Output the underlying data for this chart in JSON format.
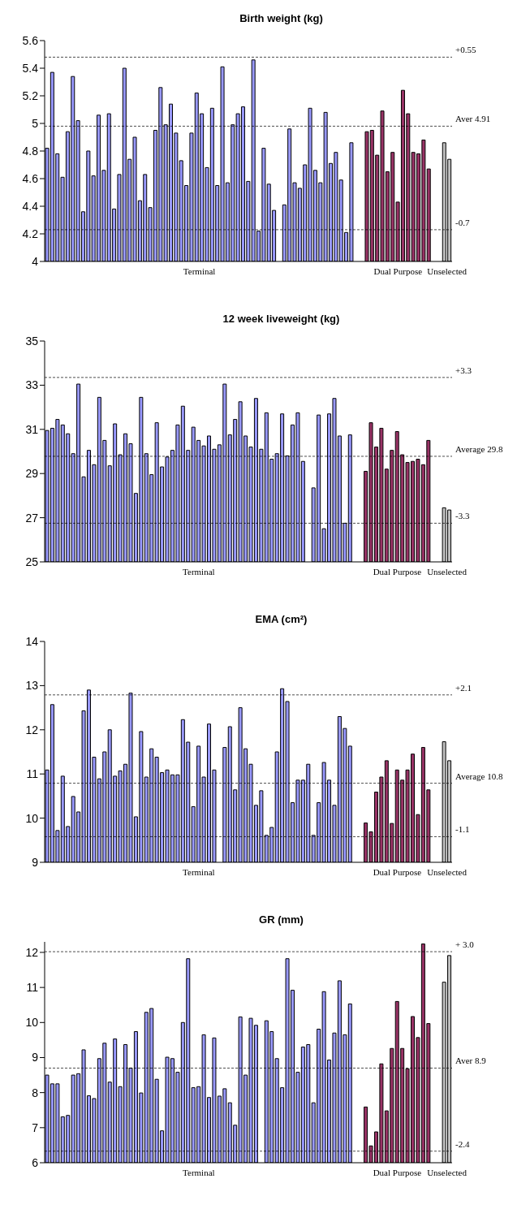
{
  "chart_data": [
    {
      "type": "bar",
      "title": "Birth weight (kg)",
      "ylim": [
        4,
        5.6
      ],
      "yticks": [
        4,
        4.2,
        4.4,
        4.6,
        4.8,
        5,
        5.2,
        5.4,
        5.6
      ],
      "categories": [
        null,
        null,
        null,
        null,
        null,
        null,
        null,
        null,
        null,
        null,
        null,
        null,
        null,
        null,
        null,
        null,
        null,
        null,
        null,
        null,
        null,
        null,
        null,
        null,
        null,
        null,
        null,
        null,
        null,
        null,
        null,
        null,
        null,
        null,
        null,
        null,
        null,
        null,
        null,
        null,
        null,
        null,
        null,
        null,
        null,
        null,
        null,
        null,
        null,
        null,
        null,
        null,
        null,
        null,
        null,
        null,
        null,
        null,
        null,
        null,
        null,
        null,
        null,
        null,
        null,
        null,
        null,
        null,
        null,
        null,
        null,
        null,
        null,
        null,
        null,
        null,
        null,
        null,
        null
      ],
      "values": [
        4.82,
        5.37,
        4.78,
        4.61,
        4.94,
        5.34,
        5.02,
        4.36,
        4.8,
        4.62,
        5.06,
        4.66,
        5.07,
        4.38,
        4.63,
        5.4,
        4.74,
        4.9,
        4.44,
        4.63,
        4.39,
        4.95,
        5.26,
        4.99,
        5.14,
        4.93,
        4.73,
        4.55,
        4.93,
        5.22,
        5.07,
        4.68,
        5.11,
        4.55,
        5.41,
        4.57,
        4.99,
        5.07,
        5.12,
        4.58,
        5.46,
        4.22,
        4.82,
        4.56,
        4.37,
        null,
        4.41,
        4.96,
        4.57,
        4.53,
        4.7,
        5.11,
        4.66,
        4.57,
        5.08,
        4.71,
        4.79,
        4.59,
        4.21,
        4.86,
        null,
        null,
        4.94,
        4.95,
        4.77,
        5.09,
        4.65,
        4.79,
        4.43,
        5.24,
        5.07,
        4.79,
        4.78,
        4.88,
        4.67,
        null,
        null,
        4.86,
        4.74
      ],
      "colors": [
        "#9999ff",
        "#9999ff",
        "#9999ff",
        "#9999ff",
        "#9999ff",
        "#9999ff",
        "#9999ff",
        "#9999ff",
        "#9999ff",
        "#9999ff",
        "#9999ff",
        "#9999ff",
        "#9999ff",
        "#9999ff",
        "#9999ff",
        "#9999ff",
        "#9999ff",
        "#9999ff",
        "#9999ff",
        "#9999ff",
        "#9999ff",
        "#9999ff",
        "#9999ff",
        "#9999ff",
        "#9999ff",
        "#9999ff",
        "#9999ff",
        "#9999ff",
        "#9999ff",
        "#9999ff",
        "#9999ff",
        "#9999ff",
        "#9999ff",
        "#9999ff",
        "#9999ff",
        "#9999ff",
        "#9999ff",
        "#9999ff",
        "#9999ff",
        "#9999ff",
        "#9999ff",
        "#9999ff",
        "#9999ff",
        "#9999ff",
        "#9999ff",
        null,
        "#9999ff",
        "#9999ff",
        "#9999ff",
        "#9999ff",
        "#9999ff",
        "#9999ff",
        "#9999ff",
        "#9999ff",
        "#9999ff",
        "#9999ff",
        "#9999ff",
        "#9999ff",
        "#9999ff",
        "#9999ff",
        null,
        null,
        "#993366",
        "#993366",
        "#993366",
        "#993366",
        "#993366",
        "#993366",
        "#993366",
        "#993366",
        "#993366",
        "#993366",
        "#993366",
        "#993366",
        "#993366",
        null,
        null,
        "#c0c0c0",
        "#c0c0c0"
      ],
      "ref_lines": [
        {
          "axis": "y",
          "value": 5.48,
          "line_style": "dashed"
        },
        {
          "axis": "y",
          "value": 4.98,
          "line_style": "dashed"
        },
        {
          "axis": "y",
          "value": 4.23,
          "line_style": "dashed"
        }
      ],
      "annotations": [
        "+0.55",
        "Aver 4.91",
        "-0.7",
        "Terminal",
        "Dual Purpose",
        "Unselected"
      ]
    },
    {
      "type": "bar",
      "title": "12 week liveweight (kg)",
      "ylim": [
        25,
        35
      ],
      "yticks": [
        25,
        27,
        29,
        31,
        33,
        35
      ],
      "categories": [
        null,
        null,
        null,
        null,
        null,
        null,
        null,
        null,
        null,
        null,
        null,
        null,
        null,
        null,
        null,
        null,
        null,
        null,
        null,
        null,
        null,
        null,
        null,
        null,
        null,
        null,
        null,
        null,
        null,
        null,
        null,
        null,
        null,
        null,
        null,
        null,
        null,
        null,
        null,
        null,
        null,
        null,
        null,
        null,
        null,
        null,
        null,
        null,
        null,
        null,
        null,
        null,
        null,
        null,
        null,
        null,
        null,
        null,
        null,
        null,
        null,
        null,
        null,
        null,
        null,
        null,
        null,
        null,
        null,
        null,
        null,
        null,
        null,
        null,
        null,
        null,
        null,
        null
      ],
      "values": [
        30.95,
        31.05,
        31.45,
        31.2,
        30.8,
        29.9,
        33.05,
        28.85,
        30.05,
        29.4,
        32.45,
        30.5,
        29.35,
        31.25,
        29.85,
        30.8,
        30.35,
        28.1,
        32.45,
        29.9,
        28.95,
        31.3,
        29.3,
        29.75,
        30.05,
        31.2,
        32.05,
        30.05,
        31.1,
        30.5,
        30.25,
        30.7,
        30.1,
        30.3,
        33.05,
        30.75,
        31.45,
        32.25,
        30.7,
        30.2,
        32.4,
        30.1,
        31.75,
        29.65,
        29.9,
        31.7,
        29.8,
        31.2,
        31.75,
        29.55,
        null,
        28.35,
        31.65,
        26.5,
        31.7,
        32.4,
        30.7,
        26.75,
        30.75,
        null,
        null,
        29.1,
        31.3,
        30.2,
        31.05,
        29.2,
        30.05,
        30.9,
        29.85,
        29.5,
        29.55,
        29.65,
        29.4,
        30.5,
        null,
        null,
        27.45,
        27.35
      ],
      "colors": [
        "#9999ff",
        "#9999ff",
        "#9999ff",
        "#9999ff",
        "#9999ff",
        "#9999ff",
        "#9999ff",
        "#9999ff",
        "#9999ff",
        "#9999ff",
        "#9999ff",
        "#9999ff",
        "#9999ff",
        "#9999ff",
        "#9999ff",
        "#9999ff",
        "#9999ff",
        "#9999ff",
        "#9999ff",
        "#9999ff",
        "#9999ff",
        "#9999ff",
        "#9999ff",
        "#9999ff",
        "#9999ff",
        "#9999ff",
        "#9999ff",
        "#9999ff",
        "#9999ff",
        "#9999ff",
        "#9999ff",
        "#9999ff",
        "#9999ff",
        "#9999ff",
        "#9999ff",
        "#9999ff",
        "#9999ff",
        "#9999ff",
        "#9999ff",
        "#9999ff",
        "#9999ff",
        "#9999ff",
        "#9999ff",
        "#9999ff",
        "#9999ff",
        "#9999ff",
        "#9999ff",
        "#9999ff",
        "#9999ff",
        "#9999ff",
        null,
        "#9999ff",
        "#9999ff",
        "#9999ff",
        "#9999ff",
        "#9999ff",
        "#9999ff",
        "#9999ff",
        "#9999ff",
        null,
        null,
        "#993366",
        "#993366",
        "#993366",
        "#993366",
        "#993366",
        "#993366",
        "#993366",
        "#993366",
        "#993366",
        "#993366",
        "#993366",
        "#993366",
        "#993366",
        null,
        null,
        "#c0c0c0",
        "#c0c0c0"
      ],
      "ref_lines": [
        {
          "axis": "y",
          "value": 33.35,
          "line_style": "dashed"
        },
        {
          "axis": "y",
          "value": 29.78,
          "line_style": "dashed"
        },
        {
          "axis": "y",
          "value": 26.75,
          "line_style": "dashed"
        }
      ],
      "annotations": [
        "+3.3",
        "Average 29.8",
        "-3.3",
        "Terminal",
        "Dual Purpose",
        "Unselected"
      ]
    },
    {
      "type": "bar",
      "title": "EMA (cm²)",
      "ylim": [
        9,
        14
      ],
      "yticks": [
        9,
        10,
        11,
        12,
        13,
        14
      ],
      "categories": [
        null,
        null,
        null,
        null,
        null,
        null,
        null,
        null,
        null,
        null,
        null,
        null,
        null,
        null,
        null,
        null,
        null,
        null,
        null,
        null,
        null,
        null,
        null,
        null,
        null,
        null,
        null,
        null,
        null,
        null,
        null,
        null,
        null,
        null,
        null,
        null,
        null,
        null,
        null,
        null,
        null,
        null,
        null,
        null,
        null,
        null,
        null,
        null,
        null,
        null,
        null,
        null,
        null,
        null,
        null,
        null,
        null,
        null,
        null,
        null,
        null,
        null,
        null,
        null,
        null,
        null,
        null,
        null,
        null,
        null,
        null,
        null,
        null,
        null,
        null,
        null,
        null,
        null
      ],
      "values": [
        11.09,
        12.57,
        9.72,
        10.95,
        9.81,
        10.49,
        10.14,
        12.43,
        12.9,
        11.38,
        10.89,
        11.5,
        12.0,
        10.95,
        11.07,
        11.22,
        12.83,
        10.03,
        11.96,
        10.93,
        11.57,
        11.38,
        11.03,
        11.09,
        10.98,
        10.98,
        12.23,
        11.72,
        10.26,
        11.63,
        10.93,
        12.13,
        11.09,
        null,
        11.6,
        12.07,
        10.64,
        12.5,
        11.57,
        11.22,
        10.29,
        10.62,
        9.61,
        9.79,
        11.5,
        12.93,
        12.64,
        10.35,
        10.86,
        10.86,
        11.22,
        9.61,
        10.35,
        11.26,
        10.86,
        10.29,
        12.3,
        12.03,
        11.63,
        null,
        null,
        9.89,
        9.69,
        10.59,
        10.93,
        11.3,
        9.88,
        11.09,
        10.86,
        11.09,
        11.45,
        10.08,
        11.6,
        10.64,
        null,
        null,
        11.73,
        11.3
      ],
      "colors": [
        "#9999ff",
        "#9999ff",
        "#9999ff",
        "#9999ff",
        "#9999ff",
        "#9999ff",
        "#9999ff",
        "#9999ff",
        "#9999ff",
        "#9999ff",
        "#9999ff",
        "#9999ff",
        "#9999ff",
        "#9999ff",
        "#9999ff",
        "#9999ff",
        "#9999ff",
        "#9999ff",
        "#9999ff",
        "#9999ff",
        "#9999ff",
        "#9999ff",
        "#9999ff",
        "#9999ff",
        "#9999ff",
        "#9999ff",
        "#9999ff",
        "#9999ff",
        "#9999ff",
        "#9999ff",
        "#9999ff",
        "#9999ff",
        "#9999ff",
        null,
        "#9999ff",
        "#9999ff",
        "#9999ff",
        "#9999ff",
        "#9999ff",
        "#9999ff",
        "#9999ff",
        "#9999ff",
        "#9999ff",
        "#9999ff",
        "#9999ff",
        "#9999ff",
        "#9999ff",
        "#9999ff",
        "#9999ff",
        "#9999ff",
        "#9999ff",
        "#9999ff",
        "#9999ff",
        "#9999ff",
        "#9999ff",
        "#9999ff",
        "#9999ff",
        "#9999ff",
        "#9999ff",
        null,
        null,
        "#993366",
        "#993366",
        "#993366",
        "#993366",
        "#993366",
        "#993366",
        "#993366",
        "#993366",
        "#993366",
        "#993366",
        "#993366",
        "#993366",
        "#993366",
        null,
        null,
        "#c0c0c0",
        "#c0c0c0"
      ],
      "ref_lines": [
        {
          "axis": "y",
          "value": 12.79,
          "line_style": "dashed"
        },
        {
          "axis": "y",
          "value": 10.79,
          "line_style": "dashed"
        },
        {
          "axis": "y",
          "value": 9.58,
          "line_style": "dashed"
        }
      ],
      "annotations": [
        "+2.1",
        "Average 10.8",
        "-1.1",
        "Terminal",
        "Dual Purpose",
        "Unselected"
      ]
    },
    {
      "type": "bar",
      "title": "GR (mm)",
      "ylim": [
        6,
        12.3
      ],
      "yticks": [
        6,
        7,
        8,
        9,
        10,
        11,
        12
      ],
      "categories": [
        null,
        null,
        null,
        null,
        null,
        null,
        null,
        null,
        null,
        null,
        null,
        null,
        null,
        null,
        null,
        null,
        null,
        null,
        null,
        null,
        null,
        null,
        null,
        null,
        null,
        null,
        null,
        null,
        null,
        null,
        null,
        null,
        null,
        null,
        null,
        null,
        null,
        null,
        null,
        null,
        null,
        null,
        null,
        null,
        null,
        null,
        null,
        null,
        null,
        null,
        null,
        null,
        null,
        null,
        null,
        null,
        null,
        null,
        null,
        null,
        null,
        null,
        null,
        null,
        null,
        null,
        null,
        null,
        null,
        null,
        null,
        null,
        null,
        null,
        null,
        null,
        null,
        null
      ],
      "values": [
        8.5,
        8.25,
        8.25,
        7.31,
        7.35,
        8.5,
        8.54,
        9.22,
        7.91,
        7.83,
        8.97,
        9.41,
        8.3,
        9.53,
        8.17,
        9.37,
        8.7,
        9.74,
        7.99,
        10.29,
        10.4,
        8.38,
        6.91,
        9.01,
        8.97,
        8.58,
        10.0,
        11.82,
        8.14,
        8.17,
        9.65,
        7.86,
        9.56,
        7.9,
        8.11,
        7.71,
        7.07,
        10.16,
        8.5,
        10.12,
        9.92,
        null,
        10.05,
        9.74,
        8.97,
        8.14,
        11.82,
        10.92,
        8.58,
        9.3,
        9.37,
        7.71,
        9.81,
        10.88,
        8.93,
        9.7,
        11.19,
        9.65,
        10.53,
        null,
        null,
        7.59,
        6.48,
        6.88,
        8.82,
        7.48,
        9.26,
        10.6,
        9.26,
        8.68,
        10.17,
        9.57,
        12.24,
        9.97,
        null,
        null,
        11.15,
        11.91
      ],
      "colors": [
        "#9999ff",
        "#9999ff",
        "#9999ff",
        "#9999ff",
        "#9999ff",
        "#9999ff",
        "#9999ff",
        "#9999ff",
        "#9999ff",
        "#9999ff",
        "#9999ff",
        "#9999ff",
        "#9999ff",
        "#9999ff",
        "#9999ff",
        "#9999ff",
        "#9999ff",
        "#9999ff",
        "#9999ff",
        "#9999ff",
        "#9999ff",
        "#9999ff",
        "#9999ff",
        "#9999ff",
        "#9999ff",
        "#9999ff",
        "#9999ff",
        "#9999ff",
        "#9999ff",
        "#9999ff",
        "#9999ff",
        "#9999ff",
        "#9999ff",
        "#9999ff",
        "#9999ff",
        "#9999ff",
        "#9999ff",
        "#9999ff",
        "#9999ff",
        "#9999ff",
        "#9999ff",
        null,
        "#9999ff",
        "#9999ff",
        "#9999ff",
        "#9999ff",
        "#9999ff",
        "#9999ff",
        "#9999ff",
        "#9999ff",
        "#9999ff",
        "#9999ff",
        "#9999ff",
        "#9999ff",
        "#9999ff",
        "#9999ff",
        "#9999ff",
        "#9999ff",
        "#9999ff",
        null,
        null,
        "#993366",
        "#993366",
        "#993366",
        "#993366",
        "#993366",
        "#993366",
        "#993366",
        "#993366",
        "#993366",
        "#993366",
        "#993366",
        "#993366",
        "#993366",
        null,
        null,
        "#c0c0c0",
        "#c0c0c0"
      ],
      "ref_lines": [
        {
          "axis": "y",
          "value": 12.02,
          "line_style": "dashed"
        },
        {
          "axis": "y",
          "value": 8.7,
          "line_style": "dashed"
        },
        {
          "axis": "y",
          "value": 6.33,
          "line_style": "dashed"
        }
      ],
      "annotations": [
        "+ 3.0",
        "Aver 8.9",
        "-2.4",
        "Terminal",
        "Dual Purpose",
        "Unselected"
      ]
    }
  ]
}
